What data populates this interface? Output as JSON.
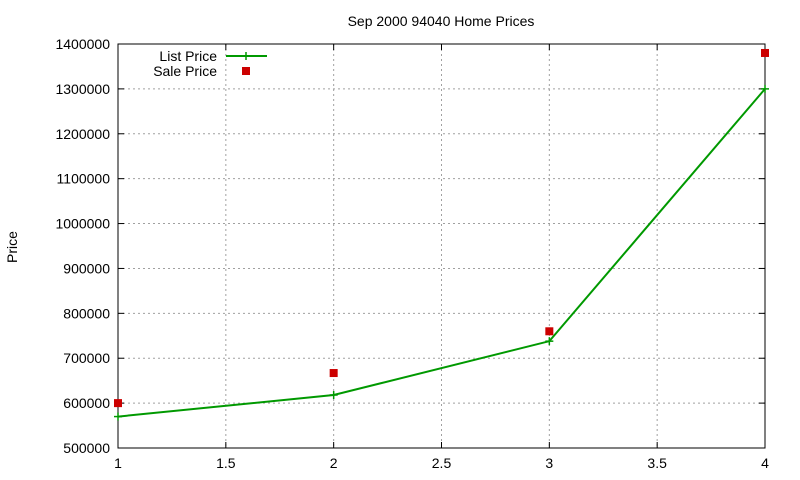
{
  "chart_data": {
    "type": "line",
    "title": "Sep 2000 94040 Home Prices",
    "xlabel": "",
    "ylabel": "Price",
    "xlim": [
      1,
      4
    ],
    "ylim": [
      500000,
      1400000
    ],
    "x_ticks": [
      "1",
      "1.5",
      "2",
      "2.5",
      "3",
      "3.5",
      "4"
    ],
    "y_ticks": [
      "500000",
      "600000",
      "700000",
      "800000",
      "900000",
      "1000000",
      "1100000",
      "1200000",
      "1300000",
      "1400000"
    ],
    "grid": true,
    "legend_position": "top-left",
    "series": [
      {
        "name": "List Price",
        "style": "linespoints",
        "color": "#009900",
        "x": [
          1,
          2,
          3,
          4
        ],
        "y": [
          570000,
          618000,
          738000,
          1300000
        ]
      },
      {
        "name": "Sale Price",
        "style": "points",
        "color": "#cc0000",
        "x": [
          1,
          2,
          3,
          4
        ],
        "y": [
          600000,
          667000,
          760000,
          1380000
        ]
      }
    ]
  }
}
